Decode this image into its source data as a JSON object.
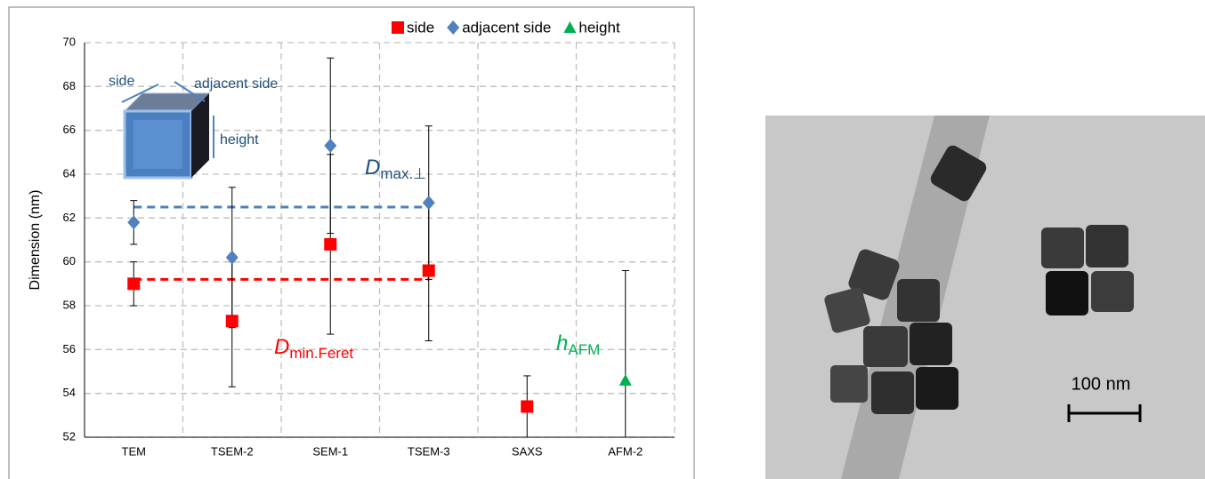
{
  "chart_data": {
    "type": "scatter",
    "y_label": "Dimension (nm)",
    "categories": [
      "TEM",
      "TSEM-2",
      "SEM-1",
      "TSEM-3",
      "SAXS",
      "AFM-2"
    ],
    "series": [
      {
        "name": "side",
        "color": "#ff0000",
        "marker": "square",
        "values": [
          59.0,
          57.3,
          60.8,
          59.6,
          53.4,
          null
        ],
        "errors": [
          1.0,
          3.0,
          4.1,
          3.2,
          1.4,
          null
        ]
      },
      {
        "name": "adjacent side",
        "color": "#4f81bd",
        "marker": "diamond",
        "values": [
          61.8,
          60.2,
          65.3,
          62.7,
          null,
          null
        ],
        "errors": [
          1.0,
          3.2,
          4.0,
          3.5,
          null,
          null
        ]
      },
      {
        "name": "height",
        "color": "#00b050",
        "marker": "triangle",
        "values": [
          null,
          null,
          null,
          null,
          null,
          54.6
        ],
        "errors": [
          null,
          null,
          null,
          null,
          null,
          5.0
        ]
      }
    ],
    "reference_lines": [
      {
        "value": 59.2,
        "color": "#ff0000",
        "from": "TEM",
        "to": "TSEM-3"
      },
      {
        "value": 62.5,
        "color": "#4f81bd",
        "from": "TEM",
        "to": "TSEM-3"
      }
    ],
    "annotations": [
      {
        "text": "D",
        "subscript": "max.⊥",
        "color": "#1f4e79"
      },
      {
        "text": "D",
        "subscript": "min.Feret",
        "color": "#ff0000"
      },
      {
        "text": "h",
        "subscript": "AFM",
        "color": "#00b050"
      }
    ],
    "inset_labels": [
      "side",
      "adjacent side",
      "height"
    ],
    "ylim": [
      52,
      70
    ],
    "yticks": [
      52,
      54,
      56,
      58,
      60,
      62,
      64,
      66,
      68,
      70
    ],
    "grid": true,
    "legend": "top-right"
  },
  "image": {
    "scale_label": "100 nm"
  }
}
